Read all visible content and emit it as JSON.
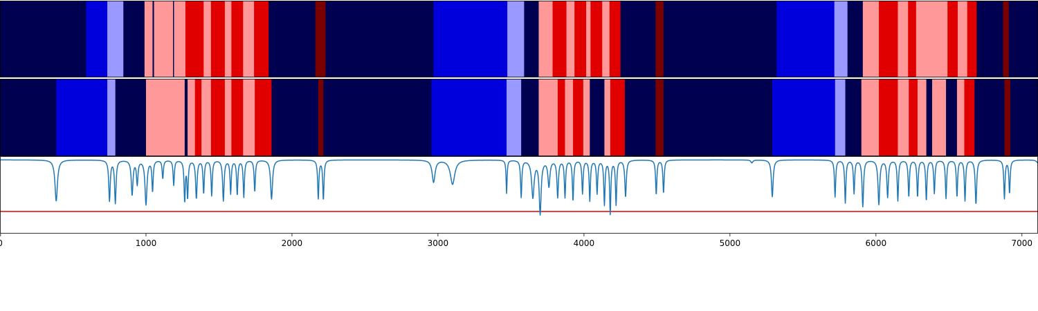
{
  "chart_data": [
    {
      "type": "heatmap",
      "name": "segmentation-track-1",
      "x_range": [
        0,
        7110
      ],
      "class_colors": {
        "0": "#000050",
        "1": "#0000dd",
        "2": "#9999ff",
        "3": "#ff9999",
        "4": "#e00000",
        "5": "#7a0000"
      },
      "segments": [
        [
          0,
          590,
          0
        ],
        [
          590,
          735,
          1
        ],
        [
          735,
          845,
          2
        ],
        [
          845,
          990,
          0
        ],
        [
          990,
          1045,
          3
        ],
        [
          1045,
          1055,
          0
        ],
        [
          1055,
          1185,
          3
        ],
        [
          1185,
          1192,
          0
        ],
        [
          1192,
          1270,
          3
        ],
        [
          1270,
          1395,
          4
        ],
        [
          1395,
          1445,
          3
        ],
        [
          1445,
          1540,
          4
        ],
        [
          1540,
          1585,
          3
        ],
        [
          1585,
          1665,
          4
        ],
        [
          1665,
          1740,
          3
        ],
        [
          1740,
          1840,
          4
        ],
        [
          1840,
          2160,
          0
        ],
        [
          2160,
          2230,
          5
        ],
        [
          2230,
          2970,
          0
        ],
        [
          2970,
          3475,
          1
        ],
        [
          3475,
          3590,
          2
        ],
        [
          3590,
          3690,
          0
        ],
        [
          3690,
          3785,
          3
        ],
        [
          3785,
          3880,
          4
        ],
        [
          3880,
          3935,
          3
        ],
        [
          3935,
          4015,
          4
        ],
        [
          4015,
          4045,
          3
        ],
        [
          4045,
          4125,
          4
        ],
        [
          4125,
          4175,
          3
        ],
        [
          4175,
          4250,
          4
        ],
        [
          4250,
          4490,
          0
        ],
        [
          4490,
          4545,
          5
        ],
        [
          4545,
          5320,
          0
        ],
        [
          5320,
          5715,
          1
        ],
        [
          5715,
          5805,
          2
        ],
        [
          5805,
          5910,
          0
        ],
        [
          5910,
          6020,
          3
        ],
        [
          6020,
          6150,
          4
        ],
        [
          6150,
          6220,
          3
        ],
        [
          6220,
          6275,
          4
        ],
        [
          6275,
          6490,
          3
        ],
        [
          6490,
          6560,
          4
        ],
        [
          6560,
          6625,
          3
        ],
        [
          6625,
          6690,
          4
        ],
        [
          6690,
          6870,
          0
        ],
        [
          6870,
          6910,
          5
        ],
        [
          6910,
          7110,
          0
        ]
      ]
    },
    {
      "type": "heatmap",
      "name": "segmentation-track-2",
      "x_range": [
        0,
        7110
      ],
      "class_colors": {
        "0": "#000050",
        "1": "#0000dd",
        "2": "#9999ff",
        "3": "#ff9999",
        "4": "#e00000",
        "5": "#7a0000"
      },
      "segments": [
        [
          0,
          385,
          0
        ],
        [
          385,
          735,
          1
        ],
        [
          735,
          790,
          2
        ],
        [
          790,
          1000,
          0
        ],
        [
          1000,
          1265,
          3
        ],
        [
          1265,
          1285,
          0
        ],
        [
          1285,
          1335,
          3
        ],
        [
          1335,
          1380,
          4
        ],
        [
          1380,
          1445,
          3
        ],
        [
          1445,
          1540,
          4
        ],
        [
          1540,
          1585,
          3
        ],
        [
          1585,
          1665,
          4
        ],
        [
          1665,
          1745,
          3
        ],
        [
          1745,
          1860,
          4
        ],
        [
          1860,
          2180,
          0
        ],
        [
          2180,
          2215,
          5
        ],
        [
          2215,
          2955,
          0
        ],
        [
          2955,
          3470,
          1
        ],
        [
          3470,
          3570,
          2
        ],
        [
          3570,
          3690,
          0
        ],
        [
          3690,
          3820,
          3
        ],
        [
          3820,
          3870,
          4
        ],
        [
          3870,
          3925,
          3
        ],
        [
          3925,
          3995,
          4
        ],
        [
          3995,
          4040,
          3
        ],
        [
          4040,
          4140,
          0
        ],
        [
          4140,
          4180,
          3
        ],
        [
          4180,
          4280,
          4
        ],
        [
          4280,
          4490,
          0
        ],
        [
          4490,
          4545,
          5
        ],
        [
          4545,
          5290,
          0
        ],
        [
          5290,
          5720,
          1
        ],
        [
          5720,
          5790,
          2
        ],
        [
          5790,
          5900,
          0
        ],
        [
          5900,
          6020,
          3
        ],
        [
          6020,
          6150,
          4
        ],
        [
          6150,
          6225,
          3
        ],
        [
          6225,
          6285,
          4
        ],
        [
          6285,
          6345,
          3
        ],
        [
          6345,
          6385,
          0
        ],
        [
          6385,
          6480,
          3
        ],
        [
          6480,
          6555,
          0
        ],
        [
          6555,
          6605,
          3
        ],
        [
          6605,
          6675,
          4
        ],
        [
          6675,
          6880,
          0
        ],
        [
          6880,
          6920,
          5
        ],
        [
          6920,
          7110,
          0
        ]
      ]
    },
    {
      "type": "line",
      "name": "score-trace",
      "xlim": [
        0,
        7110
      ],
      "ylim": [
        -1.0,
        0.05
      ],
      "threshold": -0.7,
      "threshold_color": "#e00000",
      "line_color": "#1f77b4",
      "dips": [
        [
          385,
          0.56,
          10
        ],
        [
          750,
          0.55,
          6
        ],
        [
          790,
          0.58,
          6
        ],
        [
          905,
          0.47,
          7
        ],
        [
          940,
          0.32,
          6
        ],
        [
          1000,
          0.6,
          8
        ],
        [
          1045,
          0.42,
          5
        ],
        [
          1115,
          0.25,
          5
        ],
        [
          1190,
          0.34,
          5
        ],
        [
          1265,
          0.55,
          5
        ],
        [
          1285,
          0.5,
          5
        ],
        [
          1345,
          0.52,
          6
        ],
        [
          1395,
          0.45,
          5
        ],
        [
          1450,
          0.48,
          5
        ],
        [
          1530,
          0.55,
          6
        ],
        [
          1580,
          0.45,
          5
        ],
        [
          1625,
          0.47,
          5
        ],
        [
          1670,
          0.5,
          5
        ],
        [
          1745,
          0.43,
          5
        ],
        [
          1860,
          0.53,
          8
        ],
        [
          2180,
          0.52,
          5
        ],
        [
          2215,
          0.54,
          5
        ],
        [
          2970,
          0.3,
          12
        ],
        [
          3100,
          0.33,
          18
        ],
        [
          3470,
          0.45,
          4
        ],
        [
          3570,
          0.5,
          5
        ],
        [
          3650,
          0.5,
          10
        ],
        [
          3700,
          0.72,
          8
        ],
        [
          3760,
          0.35,
          8
        ],
        [
          3820,
          0.5,
          6
        ],
        [
          3870,
          0.5,
          5
        ],
        [
          3925,
          0.55,
          5
        ],
        [
          3990,
          0.45,
          5
        ],
        [
          4040,
          0.55,
          5
        ],
        [
          4090,
          0.45,
          5
        ],
        [
          4140,
          0.6,
          5
        ],
        [
          4180,
          0.72,
          5
        ],
        [
          4220,
          0.6,
          5
        ],
        [
          4285,
          0.5,
          6
        ],
        [
          4495,
          0.47,
          5
        ],
        [
          4545,
          0.45,
          5
        ],
        [
          5150,
          0.04,
          8
        ],
        [
          5290,
          0.5,
          7
        ],
        [
          5720,
          0.5,
          5
        ],
        [
          5790,
          0.58,
          5
        ],
        [
          5850,
          0.45,
          5
        ],
        [
          5910,
          0.63,
          6
        ],
        [
          6020,
          0.6,
          7
        ],
        [
          6080,
          0.5,
          6
        ],
        [
          6150,
          0.55,
          5
        ],
        [
          6225,
          0.5,
          5
        ],
        [
          6285,
          0.5,
          5
        ],
        [
          6345,
          0.55,
          5
        ],
        [
          6400,
          0.45,
          5
        ],
        [
          6480,
          0.52,
          5
        ],
        [
          6555,
          0.5,
          5
        ],
        [
          6610,
          0.55,
          5
        ],
        [
          6685,
          0.6,
          6
        ],
        [
          6880,
          0.52,
          5
        ],
        [
          6915,
          0.45,
          5
        ],
        [
          7110,
          0.04,
          12
        ]
      ],
      "xticks": [
        0,
        1000,
        2000,
        3000,
        4000,
        5000,
        6000,
        7000
      ],
      "xtick_labels": [
        "0",
        "1000",
        "2000",
        "3000",
        "4000",
        "5000",
        "6000",
        "7000"
      ],
      "xlabel": "",
      "ylabel": "",
      "grid": false
    }
  ]
}
